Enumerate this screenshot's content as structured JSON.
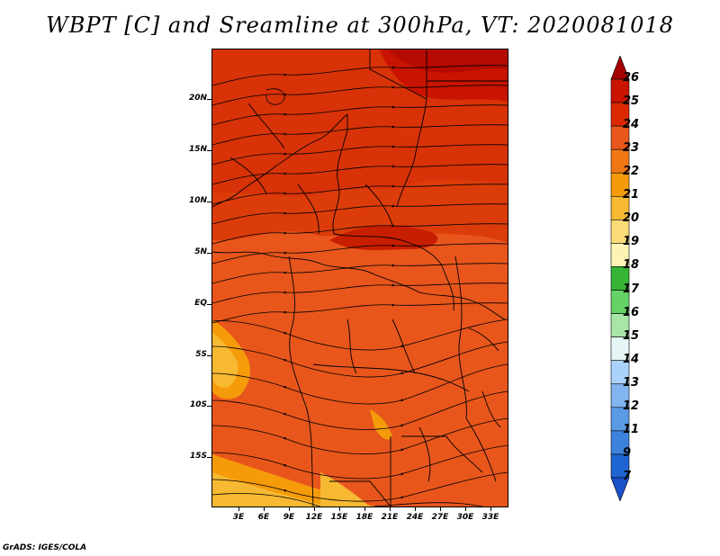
{
  "title": "WBPT [C] and Sreamline at 300hPa, VT: 2020081018",
  "credit": "GrADS: IGES/COLA",
  "map": {
    "lat_labels": [
      "20N",
      "15N",
      "10N",
      "5N",
      "EQ",
      "5S",
      "10S",
      "15S"
    ],
    "lon_labels": [
      "3E",
      "6E",
      "9E",
      "12E",
      "15E",
      "18E",
      "21E",
      "24E",
      "27E",
      "30E",
      "33E"
    ]
  },
  "colorbar": {
    "levels": [
      "26",
      "25",
      "24",
      "23",
      "22",
      "21",
      "20",
      "19",
      "18",
      "17",
      "16",
      "15",
      "14",
      "13",
      "12",
      "11",
      "9",
      "7"
    ],
    "colors": [
      "#a50000",
      "#c81400",
      "#dc2800",
      "#e8561c",
      "#f07814",
      "#f59b0a",
      "#f7b832",
      "#f9dc78",
      "#fdf4b4",
      "#36b436",
      "#64d264",
      "#a8e6a8",
      "#e6f6f6",
      "#aad2fa",
      "#82b4f0",
      "#5a9be6",
      "#3c82dc",
      "#1e64d2",
      "#1a50c8"
    ]
  }
}
